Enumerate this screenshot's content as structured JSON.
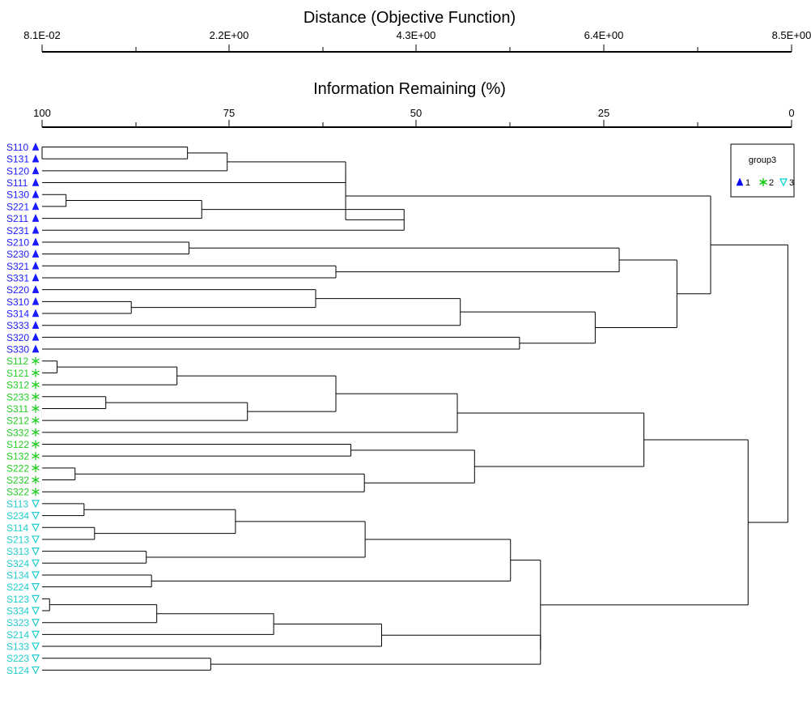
{
  "top_axis": {
    "title": "Distance (Objective Function)",
    "ticks": [
      "8.1E-02",
      "2.2E+00",
      "4.3E+00",
      "6.4E+00",
      "8.5E+00"
    ]
  },
  "second_axis": {
    "title": "Information Remaining (%)",
    "ticks": [
      "100",
      "75",
      "50",
      "25",
      "0"
    ]
  },
  "legend": {
    "title": "group3",
    "items": [
      {
        "symbol": "triangle-up",
        "label": "1",
        "color": "#0000ff"
      },
      {
        "symbol": "asterisk",
        "label": "2",
        "color": "#00cc00"
      },
      {
        "symbol": "triangle-down",
        "label": "3",
        "color": "#00cccc"
      }
    ]
  },
  "group_colors": {
    "1": "#1a1aff",
    "2": "#22cc22",
    "3": "#22cccc"
  },
  "leaves": [
    {
      "label": "S110",
      "group": "1"
    },
    {
      "label": "S131",
      "group": "1"
    },
    {
      "label": "S120",
      "group": "1"
    },
    {
      "label": "S111",
      "group": "1"
    },
    {
      "label": "S130",
      "group": "1"
    },
    {
      "label": "S221",
      "group": "1"
    },
    {
      "label": "S211",
      "group": "1"
    },
    {
      "label": "S231",
      "group": "1"
    },
    {
      "label": "S210",
      "group": "1"
    },
    {
      "label": "S230",
      "group": "1"
    },
    {
      "label": "S321",
      "group": "1"
    },
    {
      "label": "S331",
      "group": "1"
    },
    {
      "label": "S220",
      "group": "1"
    },
    {
      "label": "S310",
      "group": "1"
    },
    {
      "label": "S314",
      "group": "1"
    },
    {
      "label": "S333",
      "group": "1"
    },
    {
      "label": "S320",
      "group": "1"
    },
    {
      "label": "S330",
      "group": "1"
    },
    {
      "label": "S112",
      "group": "2"
    },
    {
      "label": "S121",
      "group": "2"
    },
    {
      "label": "S312",
      "group": "2"
    },
    {
      "label": "S233",
      "group": "2"
    },
    {
      "label": "S311",
      "group": "2"
    },
    {
      "label": "S212",
      "group": "2"
    },
    {
      "label": "S332",
      "group": "2"
    },
    {
      "label": "S122",
      "group": "2"
    },
    {
      "label": "S132",
      "group": "2"
    },
    {
      "label": "S222",
      "group": "2"
    },
    {
      "label": "S232",
      "group": "2"
    },
    {
      "label": "S322",
      "group": "2"
    },
    {
      "label": "S113",
      "group": "3"
    },
    {
      "label": "S234",
      "group": "3"
    },
    {
      "label": "S114",
      "group": "3"
    },
    {
      "label": "S213",
      "group": "3"
    },
    {
      "label": "S313",
      "group": "3"
    },
    {
      "label": "S324",
      "group": "3"
    },
    {
      "label": "S134",
      "group": "3"
    },
    {
      "label": "S224",
      "group": "3"
    },
    {
      "label": "S123",
      "group": "3"
    },
    {
      "label": "S334",
      "group": "3"
    },
    {
      "label": "S323",
      "group": "3"
    },
    {
      "label": "S214",
      "group": "3"
    },
    {
      "label": "S133",
      "group": "3"
    },
    {
      "label": "S223",
      "group": "3"
    },
    {
      "label": "S124",
      "group": "3"
    }
  ],
  "merges": [
    {
      "a": 0,
      "b": 1,
      "remaining": 100
    },
    {
      "a": "L0",
      "b": "L1",
      "remaining": 80.6
    },
    {
      "a": "M1",
      "b": "L2",
      "remaining": 75.3
    },
    {
      "a": "M2",
      "b": "L3",
      "remaining": 59.5
    },
    {
      "a": "L4",
      "b": "L5",
      "remaining": 96.8
    },
    {
      "a": "M4",
      "b": "L6",
      "remaining": 78.7
    },
    {
      "a": "M5",
      "b": "L7",
      "remaining": 51.7
    },
    {
      "a": "M3",
      "b": "M6",
      "remaining": 59.5
    },
    {
      "a": "L8",
      "b": "L9",
      "remaining": 80.4
    },
    {
      "a": "L10",
      "b": "L11",
      "remaining": 60.8
    },
    {
      "a": "M8",
      "b": "M9",
      "remaining": 23.0
    },
    {
      "a": "L13",
      "b": "L14",
      "remaining": 88.1
    },
    {
      "a": "L12",
      "b": "M11",
      "remaining": 63.5
    },
    {
      "a": "M12",
      "b": "L15",
      "remaining": 44.2
    },
    {
      "a": "L16",
      "b": "L17",
      "remaining": 36.3
    },
    {
      "a": "M13",
      "b": "M14",
      "remaining": 26.2
    },
    {
      "a": "M10",
      "b": "M15",
      "remaining": 15.3
    },
    {
      "a": "M7",
      "b": "M16",
      "remaining": 10.8
    },
    {
      "a": "L18",
      "b": "L19",
      "remaining": 98.0
    },
    {
      "a": "M18",
      "b": "L20",
      "remaining": 82.0
    },
    {
      "a": "L21",
      "b": "L22",
      "remaining": 91.5
    },
    {
      "a": "M20",
      "b": "L23",
      "remaining": 72.6
    },
    {
      "a": "M19",
      "b": "M21",
      "remaining": 60.8
    },
    {
      "a": "M22",
      "b": "L24",
      "remaining": 44.6
    },
    {
      "a": "L25",
      "b": "L26",
      "remaining": 58.8
    },
    {
      "a": "L27",
      "b": "L28",
      "remaining": 95.6
    },
    {
      "a": "M25",
      "b": "L29",
      "remaining": 57.0
    },
    {
      "a": "M24",
      "b": "M26",
      "remaining": 42.3
    },
    {
      "a": "M23",
      "b": "M27",
      "remaining": 19.7
    },
    {
      "a": "L30",
      "b": "L31",
      "remaining": 94.4
    },
    {
      "a": "L32",
      "b": "L33",
      "remaining": 93.0
    },
    {
      "a": "M29",
      "b": "M30",
      "remaining": 74.2
    },
    {
      "a": "L34",
      "b": "L35",
      "remaining": 86.1
    },
    {
      "a": "M31",
      "b": "M32",
      "remaining": 56.9
    },
    {
      "a": "L36",
      "b": "L37",
      "remaining": 85.4
    },
    {
      "a": "M33",
      "b": "M34",
      "remaining": 37.5
    },
    {
      "a": "L38",
      "b": "L39",
      "remaining": 99.0
    },
    {
      "a": "M36",
      "b": "L40",
      "remaining": 84.7
    },
    {
      "a": "M37",
      "b": "L41",
      "remaining": 69.1
    },
    {
      "a": "M38",
      "b": "L42",
      "remaining": 54.7
    },
    {
      "a": "L43",
      "b": "L44",
      "remaining": 77.5
    },
    {
      "a": "M39",
      "b": "M40",
      "remaining": 33.5
    },
    {
      "a": "M35",
      "b": "M41",
      "remaining": 33.5
    },
    {
      "a": "M28",
      "b": "M42",
      "remaining": 5.8
    },
    {
      "a": "M17",
      "b": "M43",
      "remaining": 0.5
    }
  ]
}
